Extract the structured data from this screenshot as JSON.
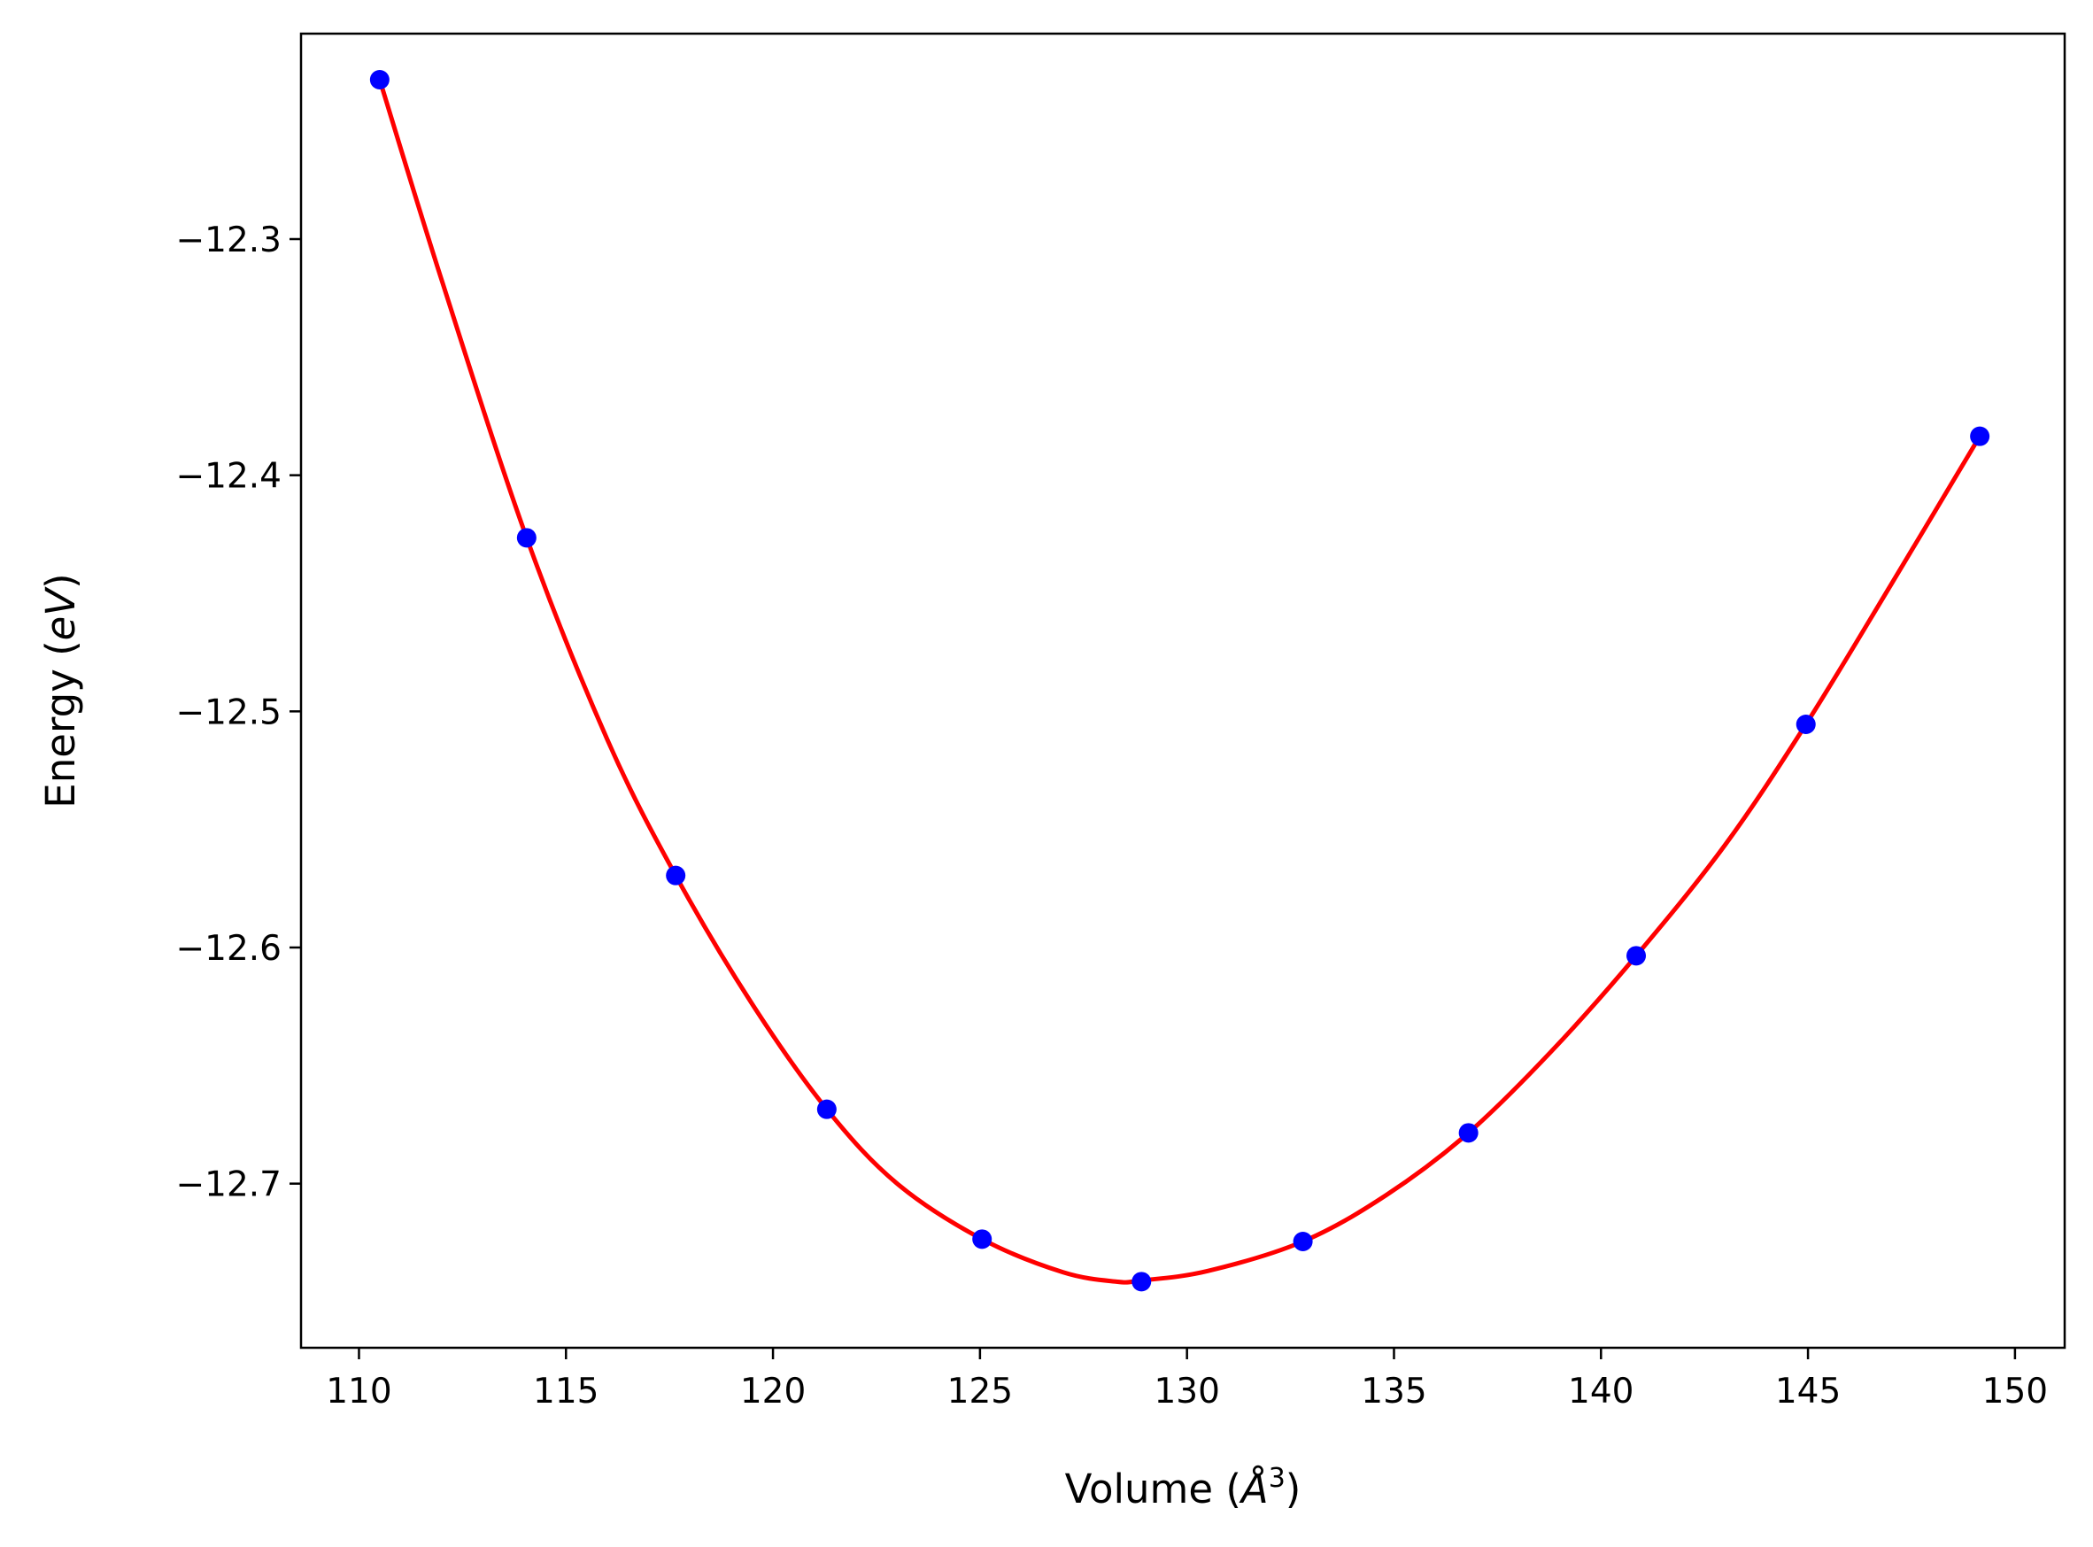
{
  "chart_data": {
    "type": "scatter",
    "title": "",
    "xlabel": "Volume (",
    "xlabel_sym": "Å",
    "xlabel_sup": "3",
    "xlabel_end": ")",
    "ylabel": "Energy (",
    "ylabel_unit": "eV",
    "ylabel_end": ")",
    "xlim": [
      108.6,
      151.2
    ],
    "ylim": [
      -12.7695,
      -12.213
    ],
    "xticks": [
      110,
      115,
      120,
      125,
      130,
      135,
      140,
      145,
      150
    ],
    "xtick_labels": [
      "110",
      "115",
      "120",
      "125",
      "130",
      "135",
      "140",
      "145",
      "150"
    ],
    "yticks": [
      -12.3,
      -12.4,
      -12.5,
      -12.6,
      -12.7
    ],
    "ytick_labels": [
      "−12.3",
      "−12.4",
      "−12.5",
      "−12.6",
      "−12.7"
    ],
    "grid": false,
    "series": [
      {
        "kind": "points",
        "color": "#0000ff",
        "x": [
          110.5,
          114.05,
          117.65,
          121.3,
          125.05,
          128.9,
          132.8,
          136.8,
          140.85,
          144.95,
          149.15
        ],
        "y": [
          -12.2325,
          -12.4265,
          -12.5695,
          -12.6685,
          -12.7235,
          -12.7415,
          -12.7245,
          -12.6785,
          -12.6035,
          -12.5055,
          -12.3835
        ]
      },
      {
        "kind": "fit",
        "color": "#ff0000",
        "x": [
          110.5,
          112.0,
          114.05,
          116.0,
          117.65,
          119.5,
          121.3,
          123.0,
          125.05,
          127.0,
          128.3,
          128.9,
          130.5,
          132.8,
          134.8,
          136.8,
          138.8,
          140.85,
          143.0,
          144.95,
          147.0,
          149.15
        ],
        "y": [
          -12.2325,
          -12.3175,
          -12.4265,
          -12.512,
          -12.5695,
          -12.624,
          -12.6685,
          -12.7,
          -12.7235,
          -12.7375,
          -12.7415,
          -12.741,
          -12.737,
          -12.7245,
          -12.705,
          -12.6785,
          -12.644,
          -12.6035,
          -12.5565,
          -12.5055,
          -12.4465,
          -12.3835
        ]
      }
    ]
  }
}
